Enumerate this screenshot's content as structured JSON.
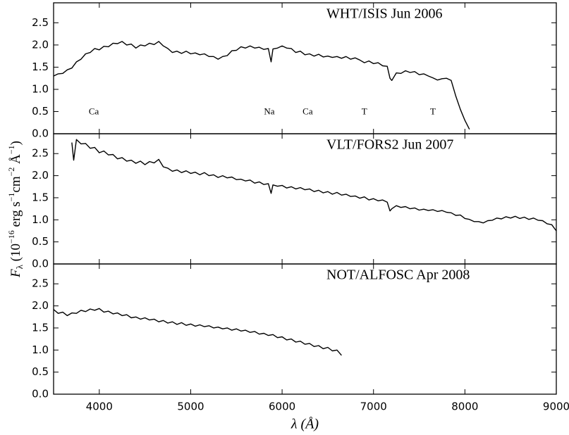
{
  "chart_data": [
    {
      "type": "line",
      "title": "WHT/ISIS Jun 2006",
      "color": "#000000",
      "xlim": [
        3500,
        9000
      ],
      "ylim": [
        0,
        2.95
      ],
      "yticks": [
        {
          "value": 0,
          "label": "0.0"
        },
        0.5,
        {
          "value": 1,
          "label": "1.0"
        },
        1.5,
        {
          "value": 2,
          "label": "2.0"
        },
        2.5
      ],
      "xticks": [
        4000,
        5000,
        6000,
        7000,
        8000,
        9000
      ],
      "annotations": [
        {
          "text": "Ca",
          "x": 3940,
          "y": 0.48
        },
        {
          "text": "Na",
          "x": 5860,
          "y": 0.48
        },
        {
          "text": "Ca",
          "x": 6280,
          "y": 0.48
        },
        {
          "text": "T",
          "x": 6900,
          "y": 0.48
        },
        {
          "text": "T",
          "x": 7650,
          "y": 0.48
        }
      ],
      "x": [
        3500,
        3550,
        3600,
        3650,
        3700,
        3750,
        3800,
        3850,
        3900,
        3950,
        4000,
        4050,
        4100,
        4150,
        4200,
        4250,
        4300,
        4350,
        4400,
        4450,
        4500,
        4550,
        4600,
        4650,
        4700,
        4750,
        4800,
        4850,
        4900,
        4950,
        5000,
        5050,
        5100,
        5150,
        5200,
        5250,
        5300,
        5350,
        5400,
        5450,
        5500,
        5550,
        5600,
        5650,
        5700,
        5750,
        5800,
        5850,
        5880,
        5900,
        5950,
        6000,
        6050,
        6100,
        6150,
        6200,
        6250,
        6300,
        6350,
        6400,
        6450,
        6500,
        6550,
        6600,
        6650,
        6700,
        6750,
        6800,
        6850,
        6900,
        6950,
        7000,
        7050,
        7100,
        7150,
        7180,
        7200,
        7250,
        7300,
        7350,
        7400,
        7450,
        7500,
        7550,
        7600,
        7650,
        7700,
        7750,
        7800,
        7850,
        7900,
        7950,
        8000,
        8050
      ],
      "values": [
        1.3,
        1.35,
        1.36,
        1.44,
        1.48,
        1.62,
        1.68,
        1.8,
        1.83,
        1.92,
        1.89,
        1.97,
        1.96,
        2.04,
        2.03,
        2.08,
        2.0,
        2.02,
        1.93,
        2.0,
        1.98,
        2.04,
        2.01,
        2.08,
        1.98,
        1.92,
        1.83,
        1.86,
        1.81,
        1.86,
        1.8,
        1.82,
        1.78,
        1.8,
        1.74,
        1.74,
        1.68,
        1.74,
        1.76,
        1.87,
        1.88,
        1.96,
        1.93,
        1.98,
        1.93,
        1.95,
        1.9,
        1.92,
        1.62,
        1.91,
        1.93,
        1.98,
        1.93,
        1.92,
        1.83,
        1.86,
        1.78,
        1.8,
        1.75,
        1.79,
        1.73,
        1.75,
        1.72,
        1.74,
        1.7,
        1.74,
        1.68,
        1.71,
        1.66,
        1.6,
        1.64,
        1.58,
        1.6,
        1.53,
        1.52,
        1.25,
        1.2,
        1.37,
        1.36,
        1.42,
        1.38,
        1.4,
        1.33,
        1.35,
        1.3,
        1.26,
        1.21,
        1.24,
        1.25,
        1.2,
        0.85,
        0.55,
        0.3,
        0.1
      ]
    },
    {
      "type": "line",
      "title": "VLT/FORS2 Jun 2007",
      "color": "#000000",
      "ylabel": [
        "F",
        "λ",
        " (10",
        "−16",
        " erg s",
        "−1",
        "cm",
        "−2",
        " Å",
        "−1",
        ")"
      ],
      "xlim": [
        3500,
        9000
      ],
      "ylim": [
        0,
        2.95
      ],
      "yticks": [
        {
          "value": 0,
          "label": "0.0"
        },
        0.5,
        {
          "value": 1,
          "label": "1.0"
        },
        1.5,
        {
          "value": 2,
          "label": "2.0"
        },
        2.5
      ],
      "xticks": [
        4000,
        5000,
        6000,
        7000,
        8000,
        9000
      ],
      "x": [
        3700,
        3720,
        3750,
        3800,
        3850,
        3900,
        3950,
        4000,
        4050,
        4100,
        4150,
        4200,
        4250,
        4300,
        4350,
        4400,
        4450,
        4500,
        4550,
        4600,
        4650,
        4700,
        4750,
        4800,
        4850,
        4900,
        4950,
        5000,
        5050,
        5100,
        5150,
        5200,
        5250,
        5300,
        5350,
        5400,
        5450,
        5500,
        5550,
        5600,
        5650,
        5700,
        5750,
        5800,
        5850,
        5880,
        5900,
        5950,
        6000,
        6050,
        6100,
        6150,
        6200,
        6250,
        6300,
        6350,
        6400,
        6450,
        6500,
        6550,
        6600,
        6650,
        6700,
        6750,
        6800,
        6850,
        6900,
        6950,
        7000,
        7050,
        7100,
        7150,
        7180,
        7200,
        7250,
        7300,
        7350,
        7400,
        7450,
        7500,
        7550,
        7600,
        7650,
        7700,
        7750,
        7800,
        7850,
        7900,
        7950,
        8000,
        8050,
        8100,
        8150,
        8200,
        8250,
        8300,
        8350,
        8400,
        8450,
        8500,
        8550,
        8600,
        8650,
        8700,
        8750,
        8800,
        8850,
        8900,
        8950,
        9000
      ],
      "values": [
        2.75,
        2.35,
        2.82,
        2.72,
        2.73,
        2.62,
        2.64,
        2.52,
        2.56,
        2.47,
        2.48,
        2.38,
        2.41,
        2.33,
        2.35,
        2.28,
        2.33,
        2.25,
        2.32,
        2.29,
        2.37,
        2.2,
        2.17,
        2.1,
        2.13,
        2.07,
        2.11,
        2.05,
        2.08,
        2.02,
        2.07,
        2.0,
        2.02,
        1.96,
        2.0,
        1.95,
        1.97,
        1.91,
        1.92,
        1.88,
        1.9,
        1.83,
        1.86,
        1.8,
        1.82,
        1.6,
        1.79,
        1.76,
        1.78,
        1.72,
        1.75,
        1.7,
        1.73,
        1.68,
        1.7,
        1.64,
        1.67,
        1.61,
        1.64,
        1.58,
        1.62,
        1.56,
        1.58,
        1.53,
        1.54,
        1.49,
        1.52,
        1.45,
        1.48,
        1.43,
        1.45,
        1.4,
        1.2,
        1.25,
        1.32,
        1.28,
        1.3,
        1.25,
        1.27,
        1.22,
        1.24,
        1.21,
        1.23,
        1.19,
        1.21,
        1.17,
        1.16,
        1.1,
        1.11,
        1.03,
        1.01,
        0.96,
        0.96,
        0.93,
        0.98,
        0.99,
        1.04,
        1.02,
        1.07,
        1.04,
        1.08,
        1.03,
        1.06,
        1.01,
        1.04,
        0.99,
        0.98,
        0.91,
        0.89,
        0.75
      ]
    },
    {
      "type": "line",
      "title": "NOT/ALFOSC Apr 2008",
      "color": "#000000",
      "xlabel": "λ (Å)",
      "xlim": [
        3500,
        9000
      ],
      "ylim": [
        0,
        2.95
      ],
      "yticks": [
        {
          "value": 0,
          "label": "0.0"
        },
        0.5,
        {
          "value": 1,
          "label": "1.0"
        },
        1.5,
        {
          "value": 2,
          "label": "2.0"
        },
        2.5
      ],
      "xticks": [
        4000,
        5000,
        6000,
        7000,
        8000,
        9000
      ],
      "x": [
        3500,
        3550,
        3600,
        3650,
        3700,
        3750,
        3800,
        3850,
        3900,
        3950,
        4000,
        4050,
        4100,
        4150,
        4200,
        4250,
        4300,
        4350,
        4400,
        4450,
        4500,
        4550,
        4600,
        4650,
        4700,
        4750,
        4800,
        4850,
        4900,
        4950,
        5000,
        5050,
        5100,
        5150,
        5200,
        5250,
        5300,
        5350,
        5400,
        5450,
        5500,
        5550,
        5600,
        5650,
        5700,
        5750,
        5800,
        5850,
        5900,
        5950,
        6000,
        6050,
        6100,
        6150,
        6200,
        6250,
        6300,
        6350,
        6400,
        6450,
        6500,
        6550,
        6600,
        6650
      ],
      "values": [
        1.92,
        1.83,
        1.86,
        1.78,
        1.84,
        1.83,
        1.9,
        1.87,
        1.93,
        1.9,
        1.94,
        1.86,
        1.88,
        1.82,
        1.84,
        1.78,
        1.8,
        1.73,
        1.75,
        1.7,
        1.73,
        1.68,
        1.7,
        1.64,
        1.67,
        1.61,
        1.64,
        1.58,
        1.62,
        1.56,
        1.59,
        1.54,
        1.57,
        1.53,
        1.55,
        1.5,
        1.52,
        1.48,
        1.5,
        1.45,
        1.48,
        1.43,
        1.45,
        1.4,
        1.42,
        1.36,
        1.38,
        1.33,
        1.35,
        1.28,
        1.3,
        1.23,
        1.25,
        1.18,
        1.2,
        1.13,
        1.15,
        1.08,
        1.1,
        1.03,
        1.06,
        0.98,
        1.0,
        0.88
      ]
    }
  ]
}
